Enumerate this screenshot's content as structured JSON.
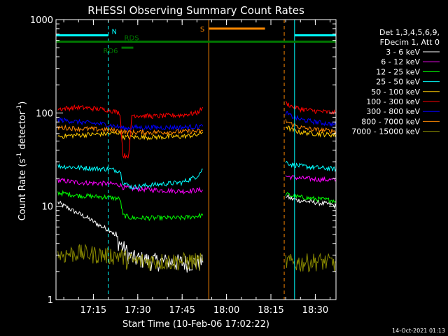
{
  "chart_data": {
    "type": "line",
    "title": "RHESSI Observing Summary Count Rates",
    "xlabel": "Start Time (10-Feb-06 17:02:22)",
    "ylabel_main": "Count Rate (s",
    "ylabel_sup1": "-1",
    "ylabel_mid": " detector",
    "ylabel_sup2": "-1",
    "ylabel_end": ")",
    "yscale": "log",
    "ylim": [
      1,
      1000
    ],
    "xlim": [
      "17:02:22",
      "18:37:00"
    ],
    "x_ticks": [
      "17:15",
      "17:30",
      "17:45",
      "18:00",
      "18:15",
      "18:30"
    ],
    "y_ticks": [
      "1",
      "10",
      "100",
      "1000"
    ],
    "legend_header": [
      "Det 1,3,4,5,6,9,",
      "FDecim 1, Att 0"
    ],
    "legend_position": "right",
    "timestamp": "14-Oct-2021 01:13",
    "state_bars": [
      {
        "label": "N",
        "color": "#00ffff",
        "segments": [
          [
            "17:02:22",
            "17:20:00"
          ],
          [
            "18:23:00",
            "18:37:00"
          ]
        ],
        "level": 680
      },
      {
        "label": "RD6",
        "color": "#007700",
        "segments": [
          [
            "17:24:30",
            "17:28:30"
          ]
        ],
        "level": 500
      },
      {
        "label": "RDS",
        "color": "#007700",
        "segments": [
          [
            "17:02:22",
            "18:37:00"
          ]
        ],
        "level": 580
      },
      {
        "label": "S",
        "color": "#ff8800",
        "segments": [
          [
            "17:54:00",
            "18:13:00"
          ]
        ],
        "level": 800
      }
    ],
    "vertical_lines": [
      {
        "time": "17:02:22",
        "color": "#00ffff",
        "style": "solid"
      },
      {
        "time": "17:20:00",
        "color": "#00ffff",
        "style": "dashed"
      },
      {
        "time": "17:54:00",
        "color": "#ff8800",
        "style": "solid"
      },
      {
        "time": "18:19:30",
        "color": "#ff8800",
        "style": "dashed"
      },
      {
        "time": "18:23:00",
        "color": "#00ffff",
        "style": "solid"
      },
      {
        "time": "18:37:00",
        "color": "#00ffff",
        "style": "dashed"
      }
    ],
    "series": [
      {
        "name": "3 - 6 keV",
        "color": "#ffffff",
        "segments": [
          {
            "x": [
              "17:03",
              "17:08",
              "17:13",
              "17:18",
              "17:21",
              "17:24",
              "17:27",
              "17:28",
              "17:35",
              "17:45",
              "17:52"
            ],
            "y": [
              11,
              9,
              7.5,
              6,
              5.5,
              4,
              3,
              2.8,
              2.6,
              2.5,
              2.5
            ]
          },
          {
            "x": [
              "18:20",
              "18:22",
              "18:25",
              "18:30",
              "18:35",
              "18:37"
            ],
            "y": [
              13,
              12,
              11.5,
              11,
              10.5,
              10
            ]
          }
        ]
      },
      {
        "name": "6 - 12 keV",
        "color": "#ff00ff",
        "segments": [
          {
            "x": [
              "17:03",
              "17:10",
              "17:20",
              "17:24",
              "17:25",
              "17:28",
              "17:35",
              "17:45",
              "17:52"
            ],
            "y": [
              19,
              18,
              17.5,
              17,
              16,
              15.5,
              15,
              14.5,
              15
            ]
          },
          {
            "x": [
              "18:20",
              "18:22",
              "18:25",
              "18:30",
              "18:37"
            ],
            "y": [
              21,
              20.5,
              20,
              19.5,
              19
            ]
          }
        ]
      },
      {
        "name": "12 - 25 keV",
        "color": "#00ff00",
        "segments": [
          {
            "x": [
              "17:03",
              "17:10",
              "17:20",
              "17:24",
              "17:25",
              "17:28",
              "17:35",
              "17:45",
              "17:52"
            ],
            "y": [
              14,
              13,
              12.5,
              12,
              8,
              7.5,
              7.5,
              7.5,
              8
            ]
          },
          {
            "x": [
              "18:20",
              "18:22",
              "18:25",
              "18:30",
              "18:37"
            ],
            "y": [
              13.5,
              13,
              12.5,
              12,
              11.5
            ]
          }
        ]
      },
      {
        "name": "25 - 50 keV",
        "color": "#00ffff",
        "segments": [
          {
            "x": [
              "17:03",
              "17:10",
              "17:20",
              "17:24",
              "17:25",
              "17:28",
              "17:35",
              "17:45",
              "17:50",
              "17:52"
            ],
            "y": [
              27,
              26,
              25,
              24,
              18,
              16,
              17,
              18,
              21,
              25
            ]
          },
          {
            "x": [
              "18:20",
              "18:22",
              "18:25",
              "18:30",
              "18:37"
            ],
            "y": [
              30,
              28,
              27,
              26,
              25
            ]
          }
        ]
      },
      {
        "name": "50 - 100 keV",
        "color": "#ffcc00",
        "segments": [
          {
            "x": [
              "17:03",
              "17:10",
              "17:20",
              "17:24",
              "17:25",
              "17:28",
              "17:35",
              "17:45",
              "17:50",
              "17:52"
            ],
            "y": [
              56,
              58,
              60,
              62,
              55,
              55,
              55,
              56,
              58,
              62
            ]
          },
          {
            "x": [
              "18:20",
              "18:22",
              "18:25",
              "18:30",
              "18:37"
            ],
            "y": [
              72,
              66,
              62,
              60,
              58
            ]
          }
        ]
      },
      {
        "name": "100 - 300 keV",
        "color": "#ff0000",
        "segments": [
          {
            "x": [
              "17:03",
              "17:10",
              "17:20",
              "17:24",
              "17:25",
              "17:27",
              "17:28",
              "17:35",
              "17:45",
              "17:50",
              "17:52"
            ],
            "y": [
              110,
              115,
              108,
              100,
              35,
              35,
              95,
              92,
              95,
              100,
              115
            ]
          },
          {
            "x": [
              "18:20",
              "18:22",
              "18:25",
              "18:30",
              "18:37"
            ],
            "y": [
              128,
              118,
              110,
              105,
              100
            ]
          }
        ]
      },
      {
        "name": "300 - 800 keV",
        "color": "#0000ff",
        "segments": [
          {
            "x": [
              "17:03",
              "17:10",
              "17:20",
              "17:24",
              "17:26",
              "17:28",
              "17:35",
              "17:45",
              "17:52"
            ],
            "y": [
              85,
              80,
              75,
              70,
              68,
              70,
              70,
              70,
              72
            ]
          },
          {
            "x": [
              "18:20",
              "18:22",
              "18:25",
              "18:30",
              "18:37"
            ],
            "y": [
              100,
              92,
              85,
              80,
              75
            ]
          }
        ]
      },
      {
        "name": "800 - 7000 keV",
        "color": "#ff8800",
        "segments": [
          {
            "x": [
              "17:03",
              "17:10",
              "17:20",
              "17:24",
              "17:26",
              "17:28",
              "17:35",
              "17:45",
              "17:52"
            ],
            "y": [
              70,
              68,
              66,
              64,
              62,
              62,
              62,
              63,
              64
            ]
          },
          {
            "x": [
              "18:20",
              "18:22",
              "18:25",
              "18:30",
              "18:37"
            ],
            "y": [
              82,
              76,
              70,
              66,
              64
            ]
          }
        ]
      },
      {
        "name": "7000 - 15000 keV",
        "color": "#888800",
        "segments": [
          {
            "x": [
              "17:03",
              "17:10",
              "17:20",
              "17:24",
              "17:27",
              "17:35",
              "17:45",
              "17:52"
            ],
            "y": [
              3,
              3.2,
              3,
              3,
              2.6,
              2.6,
              2.6,
              2.6
            ]
          },
          {
            "x": [
              "18:20",
              "18:22",
              "18:25",
              "18:30",
              "18:37"
            ],
            "y": [
              2.6,
              2.5,
              2.5,
              2.6,
              2.5
            ]
          }
        ]
      }
    ]
  }
}
